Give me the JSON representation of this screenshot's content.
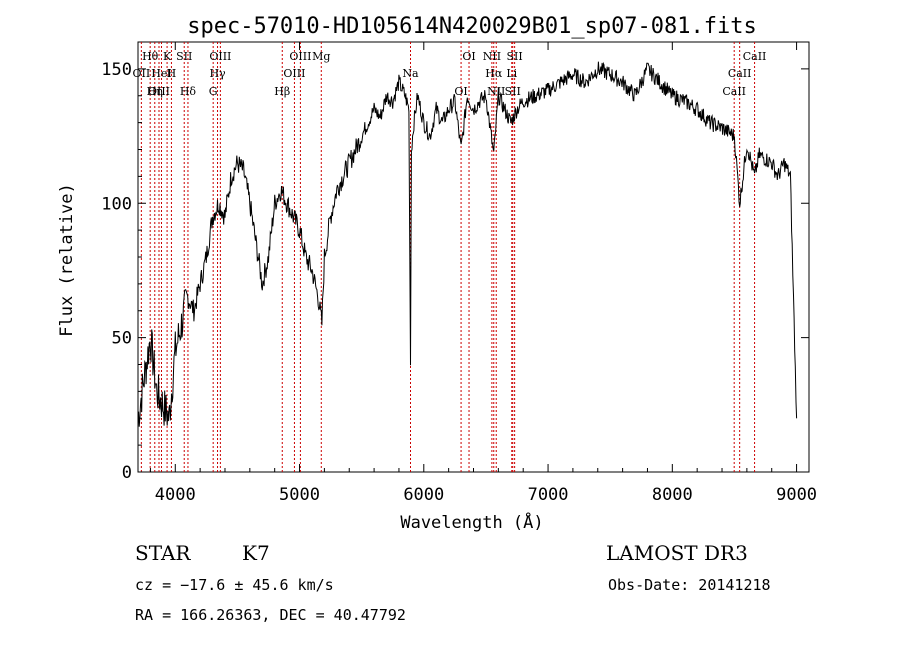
{
  "chart_data": {
    "type": "line",
    "title": "spec-57010-HD105614N420029B01_sp07-081.fits",
    "xlabel": "Wavelength (Å)",
    "ylabel": "Flux (relative)",
    "xlim": [
      3700,
      9100
    ],
    "ylim": [
      0,
      160
    ],
    "xticks": [
      "4000",
      "5000",
      "6000",
      "7000",
      "8000",
      "9000"
    ],
    "xtick_values": [
      4000,
      5000,
      6000,
      7000,
      8000,
      9000
    ],
    "yticks": [
      "0",
      "50",
      "100",
      "150"
    ],
    "ytick_values": [
      0,
      50,
      100,
      150
    ],
    "grid": false,
    "line_color": "#000000",
    "marker_color": "#cc0000",
    "series": [
      {
        "x": [
          3700,
          3750,
          3800,
          3850,
          3900,
          3950,
          4000,
          4050,
          4100,
          4150,
          4200,
          4250,
          4300,
          4350,
          4400,
          4450,
          4500,
          4550,
          4600,
          4650,
          4700,
          4750,
          4800,
          4850,
          4900,
          4950,
          5000,
          5050,
          5100,
          5150,
          5180,
          5200,
          5250,
          5300,
          5350,
          5400,
          5450,
          5500,
          5550,
          5600,
          5650,
          5700,
          5750,
          5800,
          5850,
          5880,
          5893,
          5900,
          5920,
          5950,
          6000,
          6050,
          6100,
          6150,
          6200,
          6250,
          6300,
          6350,
          6400,
          6450,
          6500,
          6563,
          6600,
          6650,
          6700,
          6750,
          6800,
          6900,
          7000,
          7100,
          7200,
          7300,
          7400,
          7500,
          7600,
          7700,
          7800,
          7900,
          8000,
          8100,
          8200,
          8300,
          8400,
          8500,
          8542,
          8600,
          8662,
          8700,
          8800,
          8850,
          8900,
          8950,
          9000
        ],
        "values": [
          20,
          35,
          50,
          30,
          25,
          20,
          45,
          55,
          65,
          60,
          70,
          80,
          95,
          100,
          95,
          110,
          115,
          112,
          100,
          85,
          70,
          80,
          100,
          105,
          100,
          95,
          90,
          80,
          75,
          65,
          55,
          80,
          95,
          105,
          110,
          115,
          120,
          125,
          130,
          135,
          132,
          140,
          138,
          145,
          140,
          135,
          40,
          120,
          130,
          140,
          130,
          125,
          135,
          130,
          135,
          138,
          120,
          140,
          135,
          138,
          140,
          118,
          140,
          135,
          130,
          135,
          138,
          140,
          142,
          145,
          148,
          145,
          150,
          148,
          145,
          140,
          150,
          145,
          140,
          138,
          135,
          130,
          128,
          125,
          100,
          122,
          110,
          118,
          115,
          110,
          115,
          110,
          20
        ]
      }
    ],
    "line_markers": [
      {
        "label": "Hθ",
        "x": 3798
      },
      {
        "label": "OII",
        "x": 3727
      },
      {
        "label": "OIII",
        "x": 3869
      },
      {
        "label": "K",
        "x": 3934
      },
      {
        "label": "HeI",
        "x": 3889
      },
      {
        "label": "Hη",
        "x": 3835
      },
      {
        "label": "SII",
        "x": 4072
      },
      {
        "label": "H",
        "x": 3969
      },
      {
        "label": "Hδ",
        "x": 4102
      },
      {
        "label": "OIII",
        "x": 4363
      },
      {
        "label": "Hγ",
        "x": 4340
      },
      {
        "label": "G",
        "x": 4305
      },
      {
        "label": "OIII",
        "x": 5007
      },
      {
        "label": "OIII",
        "x": 4959
      },
      {
        "label": "Hβ",
        "x": 4861
      },
      {
        "label": "Mg",
        "x": 5175
      },
      {
        "label": "Na",
        "x": 5893
      },
      {
        "label": "OI",
        "x": 6300
      },
      {
        "label": "OI",
        "x": 6364
      },
      {
        "label": "Hα",
        "x": 6563
      },
      {
        "label": "SII",
        "x": 6716
      },
      {
        "label": "NII",
        "x": 6548
      },
      {
        "label": "Li",
        "x": 6708
      },
      {
        "label": "NII",
        "x": 6583
      },
      {
        "label": "SII",
        "x": 6731
      },
      {
        "label": "CaII",
        "x": 8542
      },
      {
        "label": "CaII",
        "x": 8498
      },
      {
        "label": "CaII",
        "x": 8662
      }
    ]
  },
  "info": {
    "class": "STAR",
    "subclass": "K7",
    "survey": "LAMOST DR3",
    "redshift_line": "cz = −17.6 ± 45.6 km/s",
    "obs_date": "Obs-Date: 20141218",
    "coords": "RA = 166.26363, DEC =  40.47792"
  }
}
